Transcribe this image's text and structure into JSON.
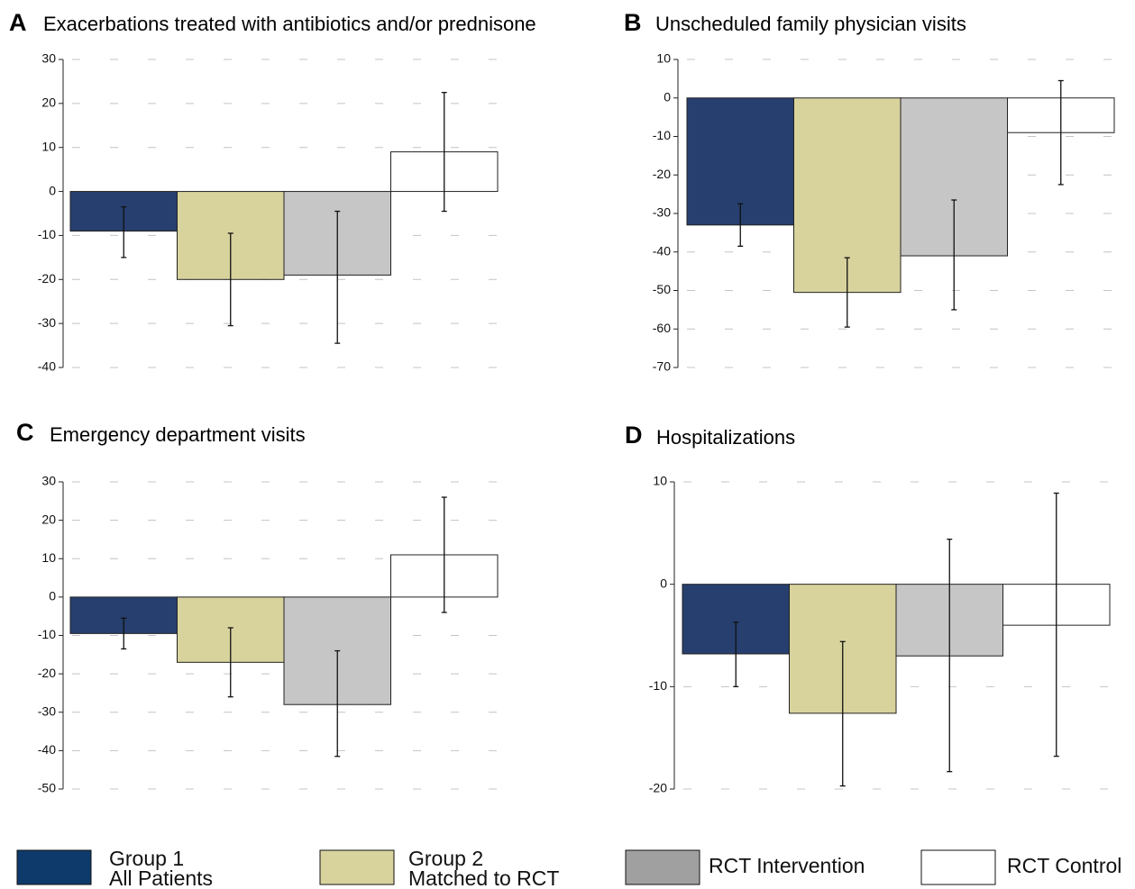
{
  "legend": [
    {
      "label_line1": "Group 1",
      "label_line2": "All Patients",
      "color": "#0e3a6b"
    },
    {
      "label_line1": "Group 2",
      "label_line2": "Matched to RCT",
      "color": "#d8d39d"
    },
    {
      "label_line1": "RCT Intervention",
      "label_line2": "",
      "color": "#a0a0a0"
    },
    {
      "label_line1": "RCT Control",
      "label_line2": "",
      "color": "#ffffff"
    }
  ],
  "chart_data": [
    {
      "type": "bar",
      "letter": "A",
      "title": "Exacerbations treated with antibiotics and/or prednisone",
      "ylim": [
        -40,
        30
      ],
      "yticks": [
        30,
        20,
        10,
        0,
        -10,
        -20,
        -30,
        -40
      ],
      "grid": true,
      "legend_position": "bottom",
      "series": [
        {
          "color": "#263f6e",
          "value": -9,
          "ci": [
            -15,
            -3.5
          ]
        },
        {
          "color": "#d8d39d",
          "value": -20,
          "ci": [
            -30.5,
            -9.5
          ]
        },
        {
          "color": "#c6c6c6",
          "value": -19,
          "ci": [
            -34.5,
            -4.5
          ]
        },
        {
          "color": "#ffffff",
          "value": 9,
          "ci": [
            -4.5,
            22.5
          ]
        }
      ]
    },
    {
      "type": "bar",
      "letter": "B",
      "title": "Unscheduled family physician visits",
      "ylim": [
        -70,
        10
      ],
      "yticks": [
        10,
        0,
        -10,
        -20,
        -30,
        -40,
        -50,
        -60,
        -70
      ],
      "grid": true,
      "legend_position": "bottom",
      "series": [
        {
          "color": "#263f6e",
          "value": -33,
          "ci": [
            -38.5,
            -27.5
          ]
        },
        {
          "color": "#d8d39d",
          "value": -50.5,
          "ci": [
            -59.5,
            -41.5
          ]
        },
        {
          "color": "#c6c6c6",
          "value": -41,
          "ci": [
            -55,
            -26.5
          ]
        },
        {
          "color": "#ffffff",
          "value": -9,
          "ci": [
            -22.5,
            4.5
          ]
        }
      ]
    },
    {
      "type": "bar",
      "letter": "C",
      "title": "Emergency department visits",
      "ylim": [
        -50,
        30
      ],
      "yticks": [
        30,
        20,
        10,
        0,
        -10,
        -20,
        -30,
        -40,
        -50
      ],
      "grid": true,
      "legend_position": "bottom",
      "series": [
        {
          "color": "#263f6e",
          "value": -9.5,
          "ci": [
            -13.5,
            -5.5
          ]
        },
        {
          "color": "#d8d39d",
          "value": -17,
          "ci": [
            -26,
            -8
          ]
        },
        {
          "color": "#c6c6c6",
          "value": -28,
          "ci": [
            -41.5,
            -14
          ]
        },
        {
          "color": "#ffffff",
          "value": 11,
          "ci": [
            -4,
            26
          ]
        }
      ]
    },
    {
      "type": "bar",
      "letter": "D",
      "title": "Hospitalizations",
      "ylim": [
        -20,
        10
      ],
      "yticks": [
        10,
        0,
        -10,
        -20
      ],
      "grid": true,
      "legend_position": "bottom",
      "series": [
        {
          "color": "#263f6e",
          "value": -6.8,
          "ci": [
            -10,
            -3.7
          ]
        },
        {
          "color": "#d8d39d",
          "value": -12.6,
          "ci": [
            -19.7,
            -5.6
          ]
        },
        {
          "color": "#c6c6c6",
          "value": -7,
          "ci": [
            -18.3,
            4.4
          ]
        },
        {
          "color": "#ffffff",
          "value": -4,
          "ci": [
            -16.8,
            8.9
          ]
        }
      ]
    }
  ]
}
